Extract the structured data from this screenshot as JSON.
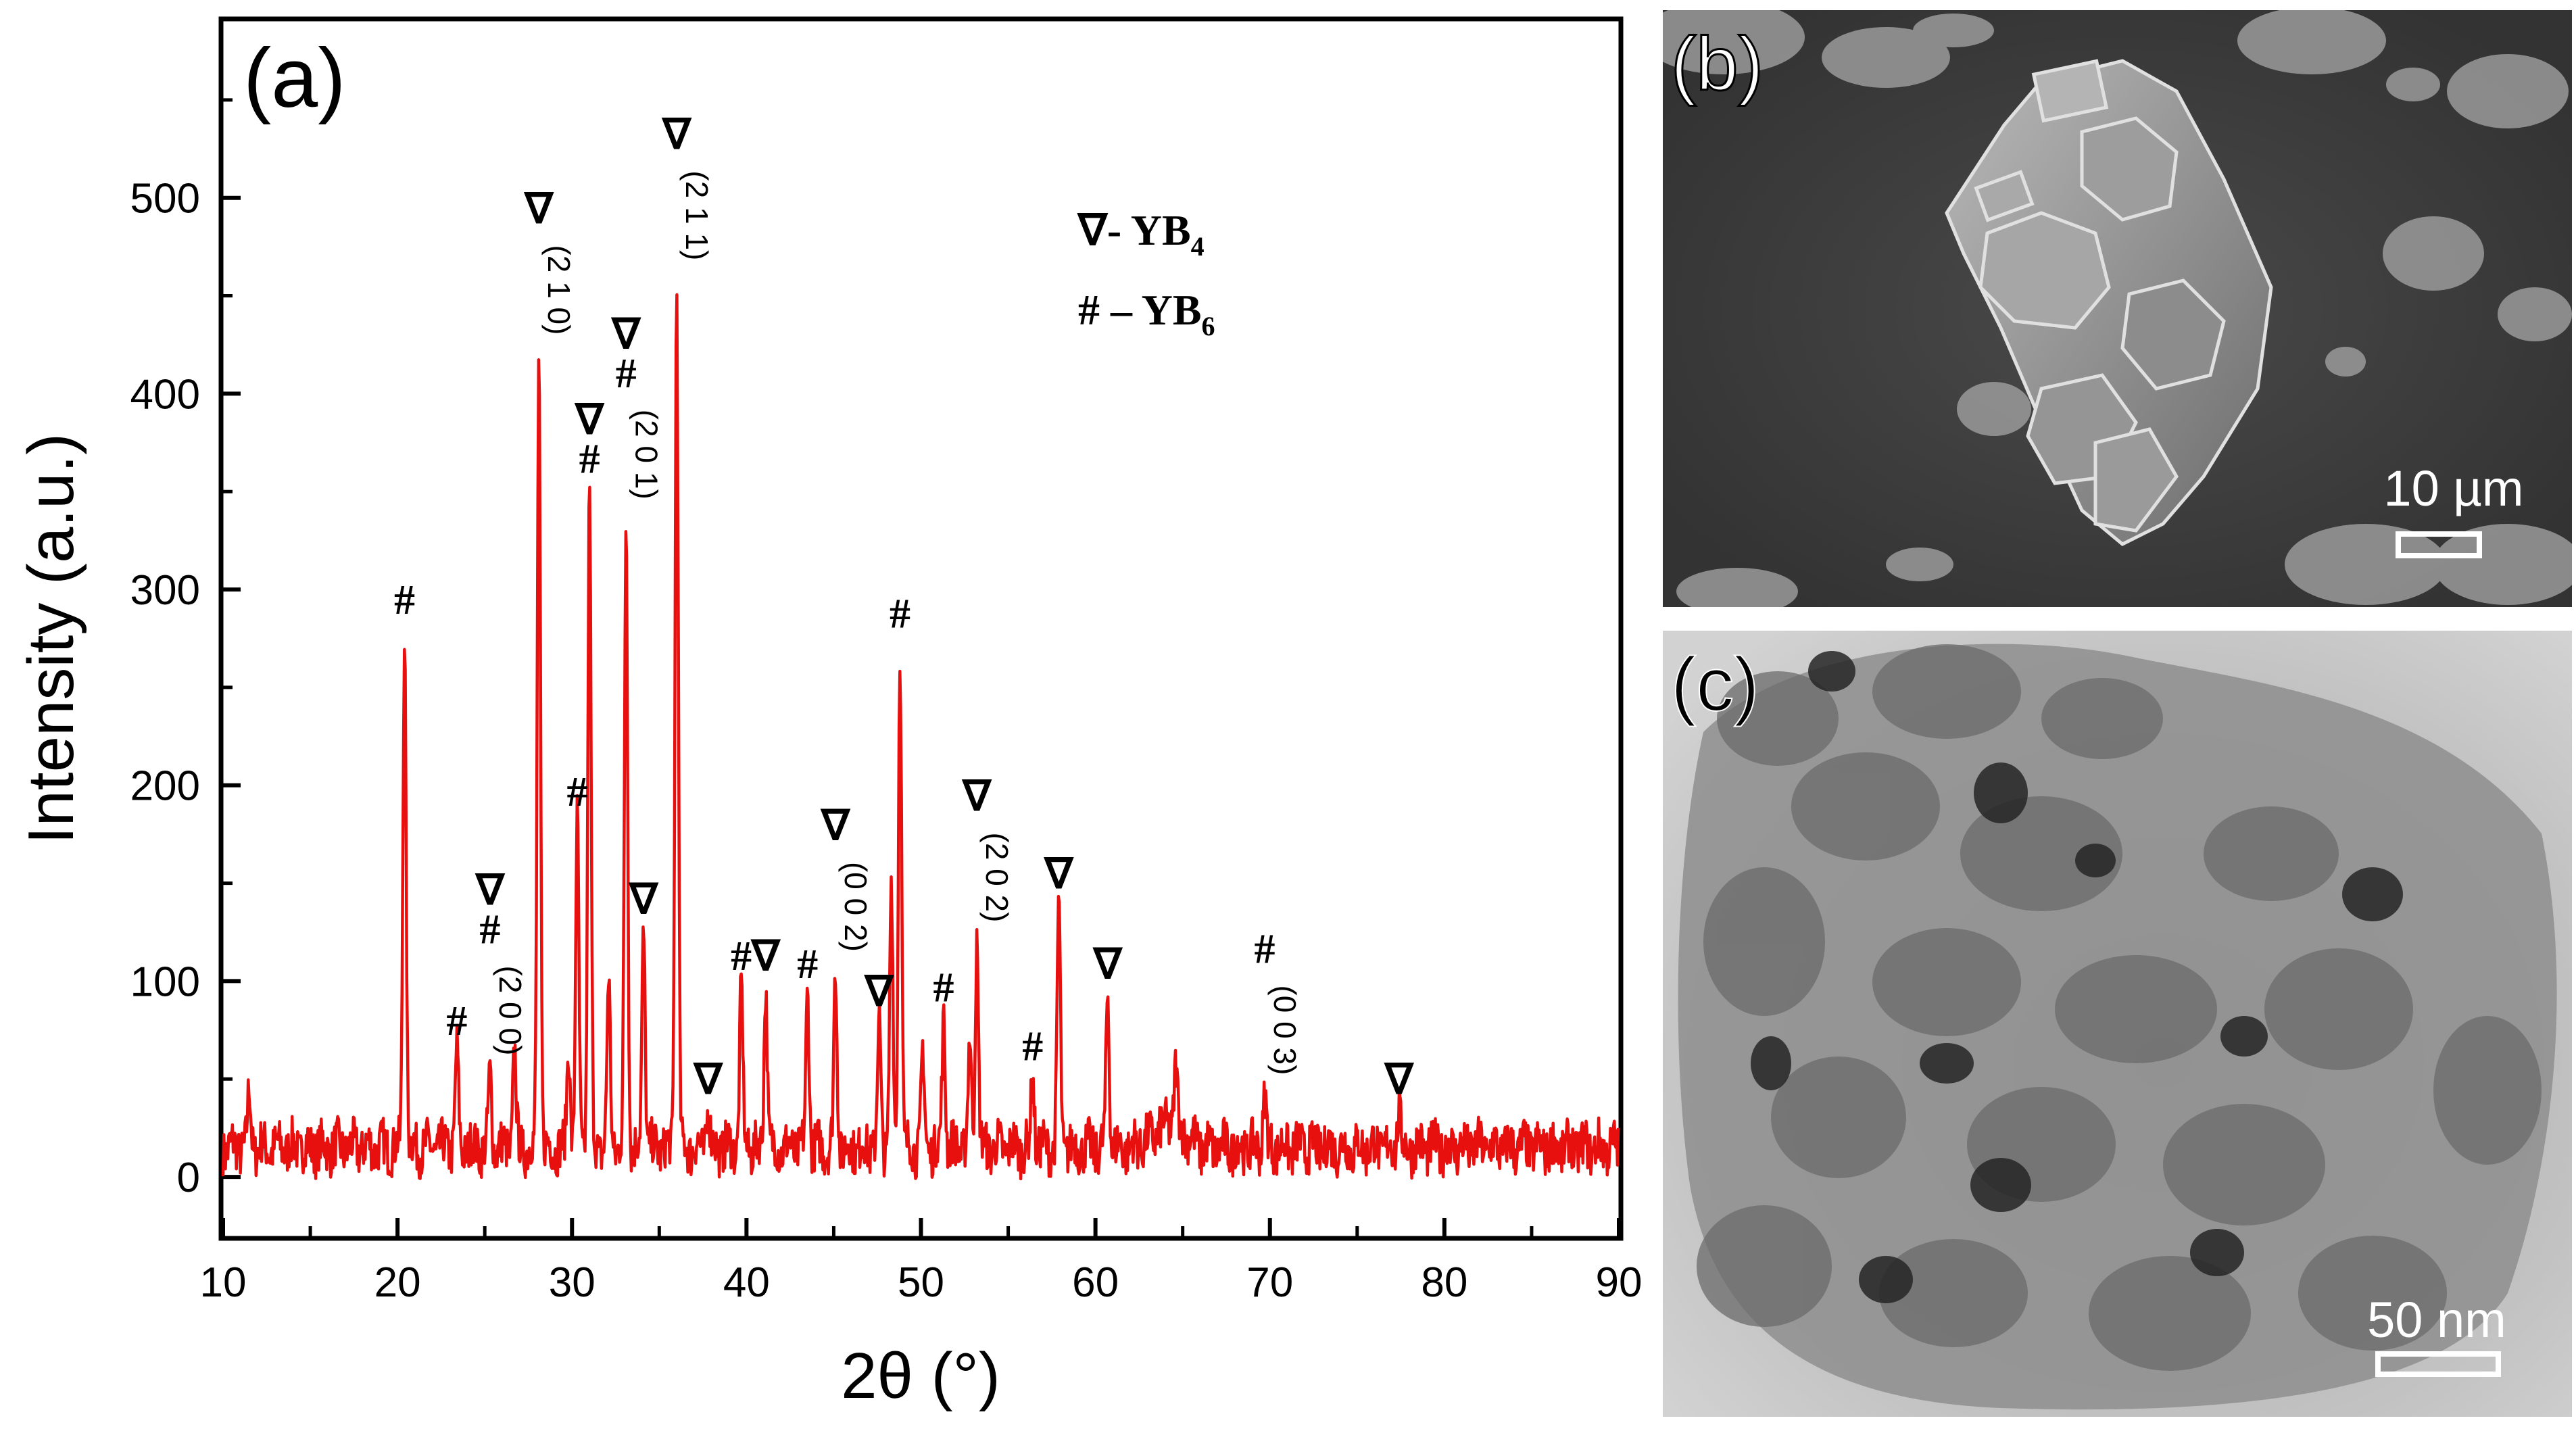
{
  "panels": {
    "a": {
      "label": "(a)"
    },
    "b": {
      "label": "(b)",
      "scale_bar": "10 µm"
    },
    "c": {
      "label": "(c)",
      "scale_bar": "50 nm"
    }
  },
  "chart_data": {
    "type": "line",
    "xlabel": "2θ (°)",
    "ylabel": "Intensity (a.u.)",
    "xlim": [
      10,
      90
    ],
    "ylim": [
      -30,
      590
    ],
    "xticks": [
      10,
      20,
      30,
      40,
      50,
      60,
      70,
      80,
      90
    ],
    "yticks": [
      0,
      100,
      200,
      300,
      400,
      500
    ],
    "grid": false,
    "line_color": "#e8100f",
    "legend": {
      "placement": "top-center",
      "entries": [
        {
          "symbol": "∇",
          "dash": "- ",
          "text": "YB",
          "sub": "4"
        },
        {
          "symbol": "#",
          "dash": " – ",
          "text": "YB",
          "sub": "6"
        }
      ]
    },
    "series": [
      {
        "baseline": 15,
        "peaks": [
          {
            "x": 11.5,
            "y": 43
          },
          {
            "x": 20.4,
            "y": 280
          },
          {
            "x": 23.4,
            "y": 65
          },
          {
            "x": 25.3,
            "y": 52
          },
          {
            "x": 26.7,
            "y": 65
          },
          {
            "x": 28.1,
            "y": 420
          },
          {
            "x": 29.8,
            "y": 68
          },
          {
            "x": 30.3,
            "y": 182
          },
          {
            "x": 31.0,
            "y": 352
          },
          {
            "x": 32.1,
            "y": 100
          },
          {
            "x": 33.1,
            "y": 336
          },
          {
            "x": 34.1,
            "y": 127
          },
          {
            "x": 36.0,
            "y": 458
          },
          {
            "x": 37.8,
            "y": 35
          },
          {
            "x": 39.7,
            "y": 98
          },
          {
            "x": 41.1,
            "y": 98
          },
          {
            "x": 43.5,
            "y": 94
          },
          {
            "x": 45.1,
            "y": 105
          },
          {
            "x": 47.6,
            "y": 80
          },
          {
            "x": 48.3,
            "y": 150
          },
          {
            "x": 48.8,
            "y": 273
          },
          {
            "x": 50.1,
            "y": 63
          },
          {
            "x": 51.3,
            "y": 82
          },
          {
            "x": 52.8,
            "y": 70
          },
          {
            "x": 53.2,
            "y": 120
          },
          {
            "x": 56.4,
            "y": 52
          },
          {
            "x": 57.9,
            "y": 140
          },
          {
            "x": 60.7,
            "y": 94
          },
          {
            "x": 64.6,
            "y": 45
          },
          {
            "x": 69.7,
            "y": 42
          },
          {
            "x": 77.4,
            "y": 35
          }
        ]
      }
    ],
    "annotations": [
      {
        "x": 20.4,
        "y": 280,
        "lines": [
          "#"
        ]
      },
      {
        "x": 23.4,
        "y": 65,
        "lines": [
          "#"
        ]
      },
      {
        "x": 25.3,
        "y": 52,
        "lines": [
          "∇",
          "#"
        ],
        "hkl": "(2 0 0)"
      },
      {
        "x": 28.1,
        "y": 420,
        "lines": [
          "∇"
        ],
        "hkl": "(2 1 0)"
      },
      {
        "x": 30.3,
        "y": 182,
        "lines": [
          "#"
        ]
      },
      {
        "x": 31.0,
        "y": 352,
        "lines": [
          "∇",
          "#"
        ]
      },
      {
        "x": 33.1,
        "y": 336,
        "lines": [
          "∇",
          "#"
        ],
        "hkl": "(2 0 1)"
      },
      {
        "x": 34.1,
        "y": 127,
        "lines": [
          "∇"
        ]
      },
      {
        "x": 36.0,
        "y": 458,
        "lines": [
          "∇"
        ],
        "hkl": "(2 1 1)"
      },
      {
        "x": 37.8,
        "y": 35,
        "lines": [
          "∇"
        ]
      },
      {
        "x": 39.7,
        "y": 98,
        "lines": [
          "#"
        ]
      },
      {
        "x": 41.1,
        "y": 98,
        "lines": [
          "∇"
        ]
      },
      {
        "x": 43.5,
        "y": 94,
        "lines": [
          "#"
        ]
      },
      {
        "x": 45.1,
        "y": 105,
        "lines": [
          "∇"
        ],
        "hkl": "(0 0 2)"
      },
      {
        "x": 47.6,
        "y": 80,
        "lines": [
          "∇"
        ]
      },
      {
        "x": 48.8,
        "y": 273,
        "lines": [
          "#"
        ]
      },
      {
        "x": 51.3,
        "y": 82,
        "lines": [
          "#"
        ]
      },
      {
        "x": 53.2,
        "y": 120,
        "lines": [
          "∇"
        ],
        "hkl": "(2 0 2)"
      },
      {
        "x": 56.4,
        "y": 52,
        "lines": [
          "#"
        ]
      },
      {
        "x": 57.9,
        "y": 140,
        "lines": [
          "∇"
        ]
      },
      {
        "x": 60.7,
        "y": 94,
        "lines": [
          "∇"
        ]
      },
      {
        "x": 69.7,
        "y": 42,
        "lines": [
          "#"
        ],
        "hkl": "(0 0 3)"
      },
      {
        "x": 77.4,
        "y": 35,
        "lines": [
          "∇"
        ]
      }
    ]
  }
}
